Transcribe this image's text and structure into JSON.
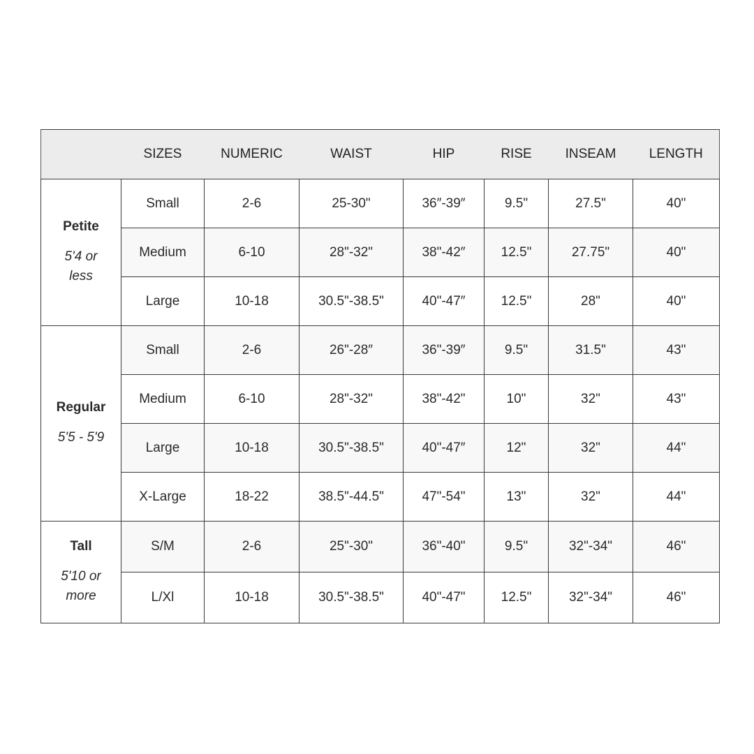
{
  "headers": [
    "",
    "SIZES",
    "NUMERIC",
    "WAIST",
    "HIP",
    "RISE",
    "INSEAM",
    "LENGTH"
  ],
  "groups": [
    {
      "name": "Petite",
      "height": "5'4 or less",
      "rows": [
        [
          "Small",
          "2-6",
          "25-30\"",
          "36″-39″",
          "9.5\"",
          "27.5\"",
          "40\""
        ],
        [
          "Medium",
          "6-10",
          "28\"-32\"",
          "38\"-42″",
          "12.5\"",
          "27.75\"",
          "40\""
        ],
        [
          "Large",
          "10-18",
          "30.5\"-38.5\"",
          "40\"-47″",
          "12.5\"",
          "28\"",
          "40\""
        ]
      ]
    },
    {
      "name": "Regular",
      "height": "5'5 - 5'9",
      "rows": [
        [
          "Small",
          "2-6",
          "26\"-28″",
          "36\"-39″",
          "9.5\"",
          "31.5\"",
          "43\""
        ],
        [
          "Medium",
          "6-10",
          "28\"-32\"",
          "38\"-42\"",
          "10\"",
          "32\"",
          "43\""
        ],
        [
          "Large",
          "10-18",
          "30.5\"-38.5\"",
          "40\"-47″",
          "12\"",
          "32\"",
          "44\""
        ],
        [
          "X-Large",
          "18-22",
          "38.5\"-44.5\"",
          "47\"-54\"",
          "13\"",
          "32\"",
          "44\""
        ]
      ]
    },
    {
      "name": "Tall",
      "height": "5'10 or more",
      "rows": [
        [
          "S/M",
          "2-6",
          "25\"-30\"",
          "36\"-40\"",
          "9.5\"",
          "32\"-34\"",
          "46\""
        ],
        [
          "L/Xl",
          "10-18",
          "30.5\"-38.5\"",
          "40\"-47\"",
          "12.5\"",
          "32\"-34\"",
          "46\""
        ]
      ]
    }
  ]
}
